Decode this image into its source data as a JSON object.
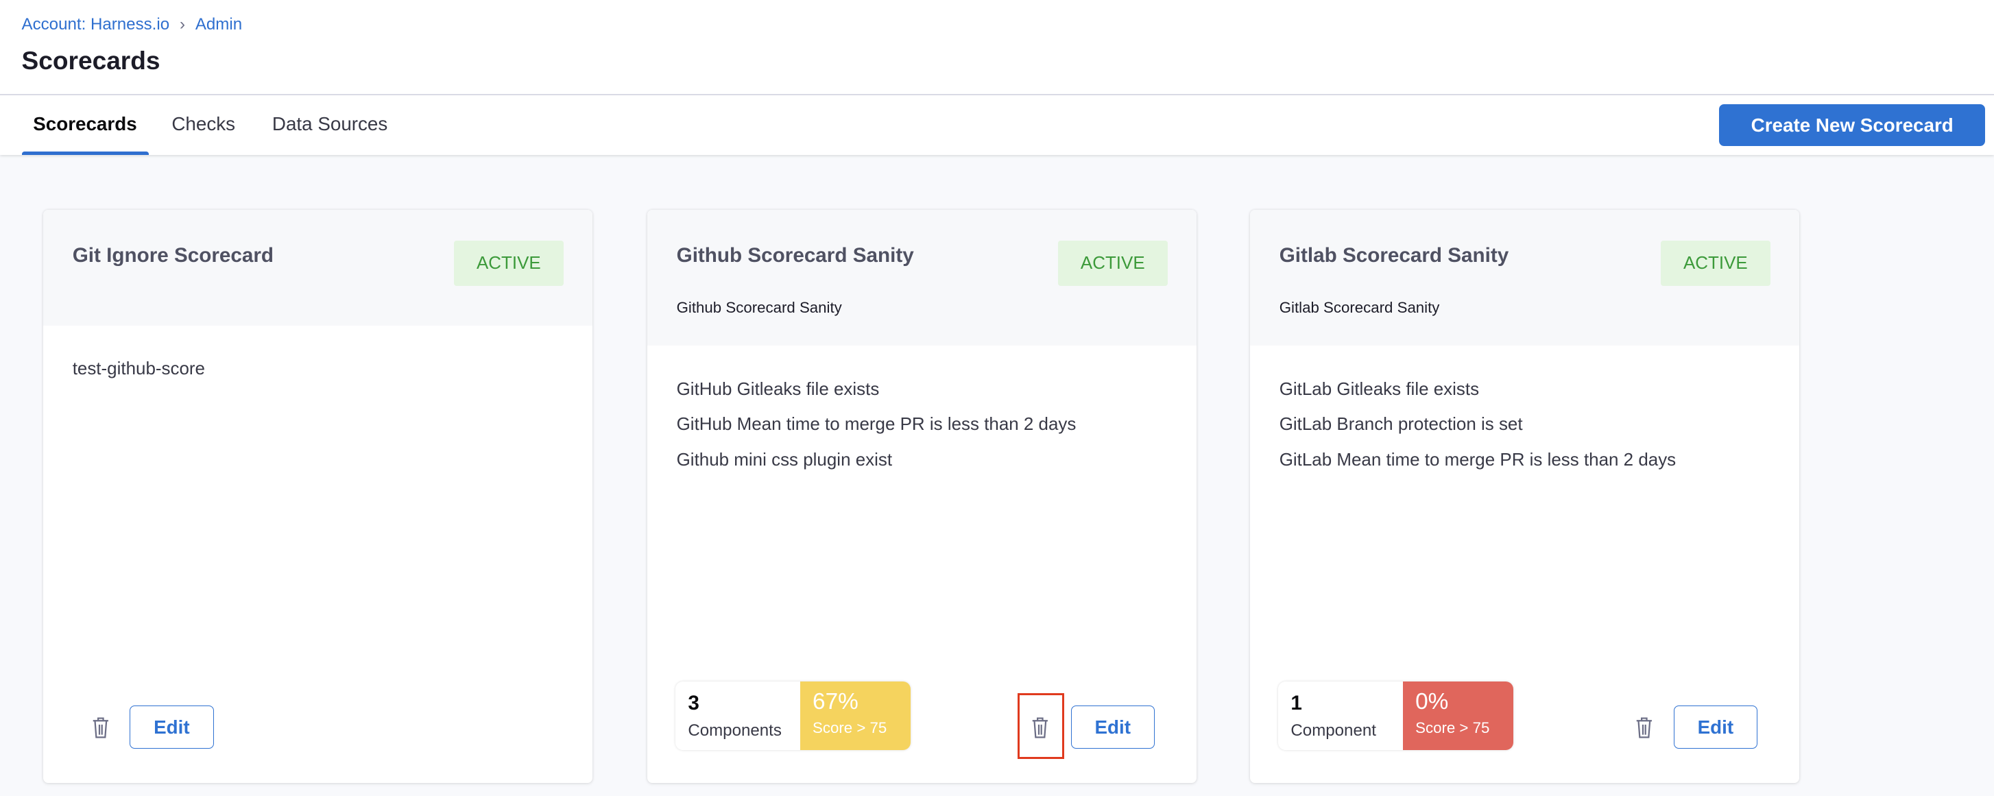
{
  "breadcrumb": [
    "Account: Harness.io",
    "Admin"
  ],
  "page_title": "Scorecards",
  "tabs": [
    {
      "label": "Scorecards",
      "active": true
    },
    {
      "label": "Checks"
    },
    {
      "label": "Data Sources"
    }
  ],
  "create_button": "Create New Scorecard",
  "cards": [
    {
      "title": "Git Ignore Scorecard",
      "status": "ACTIVE",
      "subtitle": "",
      "checks": [
        "test-github-score"
      ],
      "edit": "Edit"
    },
    {
      "title": "Github Scorecard Sanity",
      "status": "ACTIVE",
      "subtitle": "Github Scorecard Sanity",
      "checks": [
        "GitHub Gitleaks file exists",
        "GitHub Mean time to merge PR is less than 2 days",
        "Github mini css plugin exist"
      ],
      "components": "3",
      "components_label": "Components",
      "score": "67%",
      "score_label": "Score > 75",
      "score_color": "#f5d35e",
      "edit": "Edit"
    },
    {
      "title": "Gitlab Scorecard Sanity",
      "status": "ACTIVE",
      "subtitle": "Gitlab Scorecard Sanity",
      "checks": [
        "GitLab Gitleaks file exists",
        "GitLab Branch protection is set",
        "GitLab Mean time to merge PR is less than 2 days"
      ],
      "components": "1",
      "components_label": "Component",
      "score": "0%",
      "score_label": "Score > 75",
      "score_color": "#e0665c",
      "edit": "Edit"
    }
  ]
}
